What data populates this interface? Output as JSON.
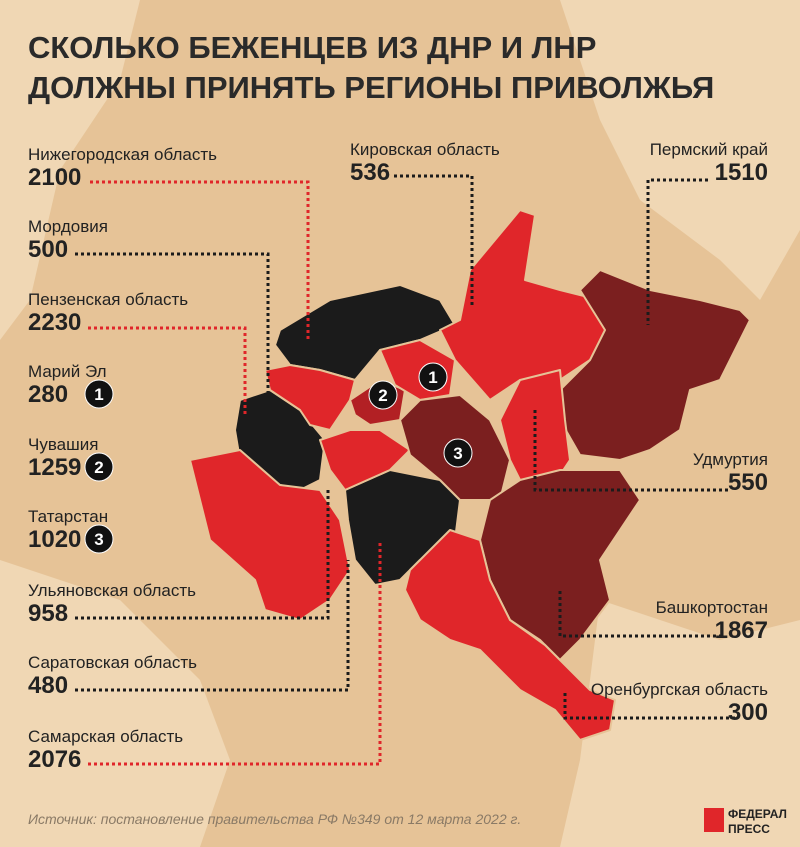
{
  "header": {
    "title_lines": [
      "СКОЛЬКО БЕЖЕНЦЕВ ИЗ ДНР И ЛНР",
      "ДОЛЖНЫ ПРИНЯТЬ РЕГИОНЫ ПРИВОЛЖЬЯ"
    ]
  },
  "regions": [
    {
      "name": "Нижегородская область",
      "value": "2100"
    },
    {
      "name": "Мордовия",
      "value": "500"
    },
    {
      "name": "Пензенская область",
      "value": "2230"
    },
    {
      "name": "Марий Эл",
      "value": "280",
      "badge": "1"
    },
    {
      "name": "Чувашия",
      "value": "1259",
      "badge": "2"
    },
    {
      "name": "Татарстан",
      "value": "1020",
      "badge": "3"
    },
    {
      "name": "Ульяновская область",
      "value": "958"
    },
    {
      "name": "Саратовская область",
      "value": "480"
    },
    {
      "name": "Самарская область",
      "value": "2076"
    },
    {
      "name": "Кировская область",
      "value": "536"
    },
    {
      "name": "Пермский край",
      "value": "1510"
    },
    {
      "name": "Удмуртия",
      "value": "550"
    },
    {
      "name": "Башкортостан",
      "value": "1867"
    },
    {
      "name": "Оренбургская область",
      "value": "300"
    }
  ],
  "source": "Источник: постановление правительства РФ №349 от 12 марта 2022 г.",
  "logo": [
    "ФЕДЕРАЛ",
    "ПРЕСС"
  ]
}
